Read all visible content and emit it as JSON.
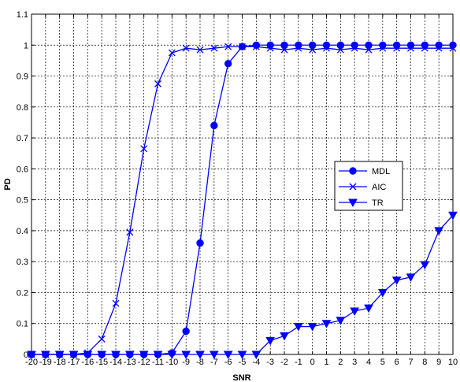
{
  "chart_data": {
    "type": "line",
    "xlabel": "SNR",
    "ylabel": "PD",
    "xlim": [
      -20,
      10
    ],
    "ylim": [
      0,
      1.1
    ],
    "grid": true,
    "legend_position": "right",
    "x": [
      -20,
      -19,
      -18,
      -17,
      -16,
      -15,
      -14,
      -13,
      -12,
      -11,
      -10,
      -9,
      -8,
      -7,
      -6,
      -5,
      -4,
      -3,
      -2,
      -1,
      0,
      1,
      2,
      3,
      4,
      5,
      6,
      7,
      8,
      9,
      10
    ],
    "x_tick_labels": [
      "-20",
      "-19",
      "-18",
      "-17",
      "-16",
      "-15",
      "-14",
      "-13",
      "-12",
      "-11",
      "-10",
      "-9",
      "-8",
      "-7",
      "-6",
      "-5",
      "-4",
      "-3",
      "-2",
      "-1",
      "0",
      "1",
      "2",
      "3",
      "4",
      "5",
      "6",
      "7",
      "8",
      "9",
      "10"
    ],
    "y_tick_labels": [
      "0",
      "0.1",
      "0.2",
      "0.3",
      "0.4",
      "0.5",
      "0.6",
      "0.7",
      "0.8",
      "0.9",
      "1",
      "1.1"
    ],
    "y_ticks": [
      0,
      0.1,
      0.2,
      0.3,
      0.4,
      0.5,
      0.6,
      0.7,
      0.8,
      0.9,
      1.0,
      1.1
    ],
    "series": [
      {
        "name": "MDL",
        "marker": "circle",
        "color": "#0000ff",
        "values": [
          0,
          0,
          0,
          0,
          0,
          0,
          0,
          0,
          0,
          0,
          0.005,
          0.075,
          0.36,
          0.74,
          0.94,
          0.995,
          1.0,
          1.0,
          1.0,
          1.0,
          1.0,
          1.0,
          1.0,
          1.0,
          1.0,
          1.0,
          1.0,
          1.0,
          1.0,
          1.0,
          1.0
        ]
      },
      {
        "name": "AIC",
        "marker": "x",
        "color": "#0000ff",
        "values": [
          0,
          0,
          0,
          0,
          0.005,
          0.05,
          0.165,
          0.395,
          0.665,
          0.875,
          0.975,
          0.99,
          0.985,
          0.99,
          0.995,
          0.995,
          0.995,
          0.99,
          0.985,
          0.99,
          0.985,
          0.99,
          0.985,
          0.99,
          0.985,
          0.99,
          0.99,
          0.99,
          0.99,
          0.99,
          0.99
        ]
      },
      {
        "name": "TR",
        "marker": "triangle-down",
        "color": "#0000ff",
        "values": [
          0,
          0,
          0,
          0,
          0,
          0,
          0,
          0,
          0,
          0,
          0,
          0,
          0,
          0,
          0,
          0,
          0,
          0.045,
          0.06,
          0.09,
          0.09,
          0.1,
          0.11,
          0.14,
          0.15,
          0.2,
          0.24,
          0.25,
          0.29,
          0.4,
          0.45
        ]
      }
    ]
  }
}
